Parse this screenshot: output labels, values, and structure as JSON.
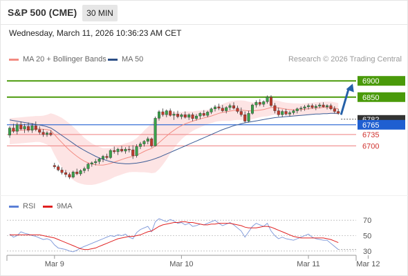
{
  "header": {
    "title": "S&P 500 (CME)",
    "timeframe": "30 MIN",
    "datetime": "Wednesday, March 11, 2026 10:36:23 AM CET"
  },
  "legend": {
    "ma20": {
      "label": "MA 20 + Bollinger Bands",
      "color": "#f28b82"
    },
    "ma50": {
      "label": "MA 50",
      "color": "#2c4f86"
    },
    "copyright": "Research © 2026 Trading Central"
  },
  "rsi_legend": {
    "rsi": {
      "label": "RSI",
      "color": "#5b7fd6"
    },
    "ma9": {
      "label": "9MA",
      "color": "#e02020"
    }
  },
  "colors": {
    "bull": "#3aa04a",
    "bear": "#c0392b",
    "resistance": "#4a9a0a",
    "support": "#f08a8a",
    "current": "#1f5fd1",
    "arrow": "#2560a8",
    "band": "#fde4e4"
  },
  "chart_data": [
    {
      "type": "candlestick",
      "x_tick_labels": [
        "Mar 9",
        "Mar 10",
        "Mar 11",
        "Mar 12"
      ],
      "x_tick_index": [
        12,
        46,
        80,
        96
      ],
      "y_range": [
        6580,
        6945
      ],
      "ohlc": [
        [
          6733,
          6760,
          6725,
          6755
        ],
        [
          6755,
          6768,
          6740,
          6745
        ],
        [
          6745,
          6772,
          6735,
          6765
        ],
        [
          6765,
          6775,
          6748,
          6752
        ],
        [
          6752,
          6768,
          6740,
          6760
        ],
        [
          6760,
          6772,
          6742,
          6748
        ],
        [
          6748,
          6770,
          6740,
          6762
        ],
        [
          6762,
          6775,
          6745,
          6750
        ],
        [
          6750,
          6760,
          6735,
          6742
        ],
        [
          6742,
          6752,
          6728,
          6735
        ],
        [
          6735,
          6745,
          6728,
          6740
        ],
        [
          6740,
          6748,
          6730,
          6734
        ],
        [
          6640,
          6648,
          6630,
          6636
        ],
        [
          6636,
          6642,
          6622,
          6626
        ],
        [
          6626,
          6634,
          6612,
          6618
        ],
        [
          6618,
          6626,
          6604,
          6612
        ],
        [
          6612,
          6618,
          6598,
          6604
        ],
        [
          6604,
          6624,
          6600,
          6620
        ],
        [
          6620,
          6630,
          6610,
          6614
        ],
        [
          6614,
          6628,
          6608,
          6624
        ],
        [
          6624,
          6636,
          6616,
          6630
        ],
        [
          6630,
          6648,
          6622,
          6644
        ],
        [
          6644,
          6652,
          6636,
          6648
        ],
        [
          6648,
          6660,
          6640,
          6652
        ],
        [
          6652,
          6664,
          6644,
          6660
        ],
        [
          6660,
          6672,
          6650,
          6668
        ],
        [
          6668,
          6676,
          6658,
          6664
        ],
        [
          6664,
          6690,
          6660,
          6686
        ],
        [
          6686,
          6698,
          6676,
          6682
        ],
        [
          6682,
          6694,
          6672,
          6690
        ],
        [
          6690,
          6700,
          6680,
          6684
        ],
        [
          6684,
          6696,
          6676,
          6690
        ],
        [
          6690,
          6700,
          6680,
          6688
        ],
        [
          6688,
          6702,
          6660,
          6670
        ],
        [
          6670,
          6705,
          6664,
          6698
        ],
        [
          6698,
          6712,
          6690,
          6706
        ],
        [
          6706,
          6718,
          6698,
          6714
        ],
        [
          6714,
          6728,
          6705,
          6722
        ],
        [
          6722,
          6726,
          6695,
          6700
        ],
        [
          6700,
          6790,
          6698,
          6785
        ],
        [
          6785,
          6810,
          6778,
          6805
        ],
        [
          6805,
          6815,
          6790,
          6796
        ],
        [
          6796,
          6812,
          6788,
          6808
        ],
        [
          6808,
          6815,
          6790,
          6794
        ],
        [
          6794,
          6806,
          6780,
          6798
        ],
        [
          6798,
          6808,
          6785,
          6790
        ],
        [
          6790,
          6800,
          6782,
          6796
        ],
        [
          6796,
          6806,
          6784,
          6788
        ],
        [
          6788,
          6800,
          6780,
          6796
        ],
        [
          6796,
          6802,
          6776,
          6784
        ],
        [
          6784,
          6798,
          6778,
          6792
        ],
        [
          6792,
          6804,
          6782,
          6800
        ],
        [
          6800,
          6810,
          6790,
          6794
        ],
        [
          6794,
          6808,
          6788,
          6804
        ],
        [
          6804,
          6818,
          6798,
          6814
        ],
        [
          6814,
          6826,
          6806,
          6820
        ],
        [
          6820,
          6830,
          6810,
          6816
        ],
        [
          6816,
          6826,
          6804,
          6808
        ],
        [
          6808,
          6822,
          6800,
          6818
        ],
        [
          6818,
          6830,
          6810,
          6824
        ],
        [
          6824,
          6834,
          6812,
          6816
        ],
        [
          6816,
          6824,
          6800,
          6806
        ],
        [
          6806,
          6818,
          6790,
          6796
        ],
        [
          6796,
          6806,
          6770,
          6776
        ],
        [
          6776,
          6808,
          6772,
          6800
        ],
        [
          6800,
          6830,
          6796,
          6826
        ],
        [
          6826,
          6840,
          6818,
          6834
        ],
        [
          6834,
          6844,
          6822,
          6828
        ],
        [
          6828,
          6840,
          6820,
          6836
        ],
        [
          6836,
          6855,
          6830,
          6850
        ],
        [
          6850,
          6856,
          6820,
          6824
        ],
        [
          6824,
          6832,
          6800,
          6808
        ],
        [
          6808,
          6818,
          6790,
          6796
        ],
        [
          6796,
          6812,
          6788,
          6806
        ],
        [
          6806,
          6814,
          6794,
          6798
        ],
        [
          6798,
          6808,
          6790,
          6802
        ],
        [
          6802,
          6812,
          6796,
          6808
        ],
        [
          6808,
          6818,
          6800,
          6814
        ],
        [
          6814,
          6822,
          6806,
          6816
        ],
        [
          6816,
          6826,
          6808,
          6820
        ],
        [
          6820,
          6830,
          6812,
          6824
        ],
        [
          6824,
          6830,
          6814,
          6818
        ],
        [
          6818,
          6828,
          6810,
          6822
        ],
        [
          6822,
          6832,
          6816,
          6826
        ],
        [
          6826,
          6834,
          6818,
          6820
        ],
        [
          6820,
          6828,
          6812,
          6824
        ],
        [
          6824,
          6830,
          6810,
          6814
        ],
        [
          6814,
          6822,
          6800,
          6806
        ],
        [
          6806,
          6814,
          6796,
          6800
        ]
      ],
      "ma20": [
        6745,
        6746,
        6747,
        6748,
        6749,
        6750,
        6751,
        6752,
        6752,
        6751,
        6750,
        6748,
        6735,
        6722,
        6710,
        6698,
        6687,
        6677,
        6668,
        6660,
        6653,
        6648,
        6644,
        6642,
        6641,
        6641,
        6643,
        6646,
        6650,
        6654,
        6658,
        6662,
        6665,
        6668,
        6672,
        6677,
        6683,
        6688,
        6692,
        6700,
        6710,
        6720,
        6730,
        6740,
        6748,
        6756,
        6762,
        6768,
        6772,
        6776,
        6780,
        6783,
        6786,
        6789,
        6792,
        6796,
        6800,
        6803,
        6805,
        6807,
        6809,
        6810,
        6810,
        6809,
        6808,
        6808,
        6809,
        6810,
        6812,
        6815,
        6818,
        6818,
        6817,
        6815,
        6813,
        6812,
        6811,
        6811,
        6812,
        6813,
        6814,
        6815,
        6816,
        6817,
        6818,
        6818,
        6818,
        6816,
        6814
      ],
      "bb_width": [
        40,
        40,
        40,
        40,
        40,
        40,
        40,
        40,
        40,
        42,
        46,
        52,
        62,
        70,
        76,
        80,
        82,
        82,
        80,
        76,
        72,
        68,
        64,
        60,
        56,
        52,
        50,
        48,
        46,
        46,
        46,
        46,
        46,
        48,
        52,
        58,
        64,
        70,
        76,
        82,
        82,
        78,
        72,
        64,
        56,
        48,
        42,
        38,
        34,
        30,
        28,
        26,
        24,
        22,
        22,
        22,
        24,
        26,
        28,
        30,
        30,
        30,
        30,
        30,
        28,
        26,
        24,
        22,
        22,
        24,
        24,
        22,
        22,
        20,
        20,
        20,
        20,
        20,
        18,
        18,
        18,
        18,
        18,
        18,
        18,
        18,
        18,
        18,
        18
      ],
      "ma50": [
        6780,
        6778,
        6776,
        6774,
        6772,
        6770,
        6768,
        6766,
        6764,
        6762,
        6759,
        6755,
        6748,
        6740,
        6732,
        6724,
        6716,
        6708,
        6700,
        6693,
        6686,
        6680,
        6674,
        6668,
        6663,
        6659,
        6655,
        6652,
        6649,
        6647,
        6646,
        6645,
        6645,
        6646,
        6647,
        6649,
        6651,
        6654,
        6657,
        6661,
        6665,
        6670,
        6675,
        6680,
        6685,
        6690,
        6695,
        6700,
        6705,
        6710,
        6715,
        6720,
        6725,
        6730,
        6735,
        6740,
        6745,
        6750,
        6754,
        6758,
        6762,
        6765,
        6768,
        6771,
        6773,
        6775,
        6777,
        6779,
        6781,
        6783,
        6785,
        6787,
        6788,
        6789,
        6790,
        6791,
        6792,
        6793,
        6794,
        6795,
        6796,
        6797,
        6798,
        6798,
        6799,
        6799,
        6800,
        6800,
        6800
      ],
      "levels": [
        {
          "value": 6900,
          "label": "6900",
          "kind": "resistance"
        },
        {
          "value": 6850,
          "label": "6850",
          "kind": "resistance"
        },
        {
          "value": 6782,
          "label": "6782",
          "kind": "last"
        },
        {
          "value": 6765,
          "label": "6765",
          "kind": "current"
        },
        {
          "value": 6735,
          "label": "6735",
          "kind": "support"
        },
        {
          "value": 6700,
          "label": "6700",
          "kind": "support"
        }
      ],
      "arrow_target": 6900
    },
    {
      "type": "line",
      "name": "RSI",
      "y_range": [
        20,
        80
      ],
      "y_ticks": [
        70,
        50,
        30
      ],
      "rsi": [
        52,
        48,
        50,
        55,
        53,
        52,
        50,
        49,
        47,
        45,
        46,
        44,
        38,
        34,
        33,
        32,
        30,
        29,
        31,
        34,
        36,
        38,
        40,
        42,
        44,
        46,
        48,
        50,
        49,
        51,
        50,
        52,
        48,
        46,
        54,
        58,
        60,
        62,
        55,
        68,
        72,
        70,
        68,
        71,
        69,
        66,
        67,
        64,
        66,
        62,
        63,
        65,
        64,
        66,
        68,
        70,
        66,
        63,
        65,
        67,
        64,
        60,
        56,
        48,
        55,
        62,
        66,
        64,
        62,
        66,
        56,
        50,
        46,
        48,
        46,
        45,
        44,
        46,
        48,
        50,
        52,
        48,
        46,
        45,
        44,
        44,
        40,
        36,
        32
      ],
      "ma9": [
        51,
        51,
        51,
        51,
        51,
        51,
        51,
        51,
        51,
        50,
        49,
        48,
        47,
        45,
        43,
        41,
        39,
        37,
        35,
        33,
        32,
        32,
        33,
        34,
        36,
        38,
        40,
        42,
        44,
        46,
        47,
        48,
        49,
        49,
        50,
        51,
        53,
        55,
        56,
        59,
        62,
        64,
        65,
        66,
        67,
        67,
        68,
        68,
        67,
        67,
        66,
        65,
        64,
        64,
        65,
        65,
        66,
        66,
        66,
        66,
        65,
        64,
        63,
        61,
        60,
        60,
        60,
        61,
        62,
        62,
        61,
        59,
        57,
        55,
        53,
        51,
        49,
        48,
        47,
        47,
        47,
        47,
        47,
        47,
        47,
        46,
        45,
        43,
        41
      ]
    }
  ]
}
